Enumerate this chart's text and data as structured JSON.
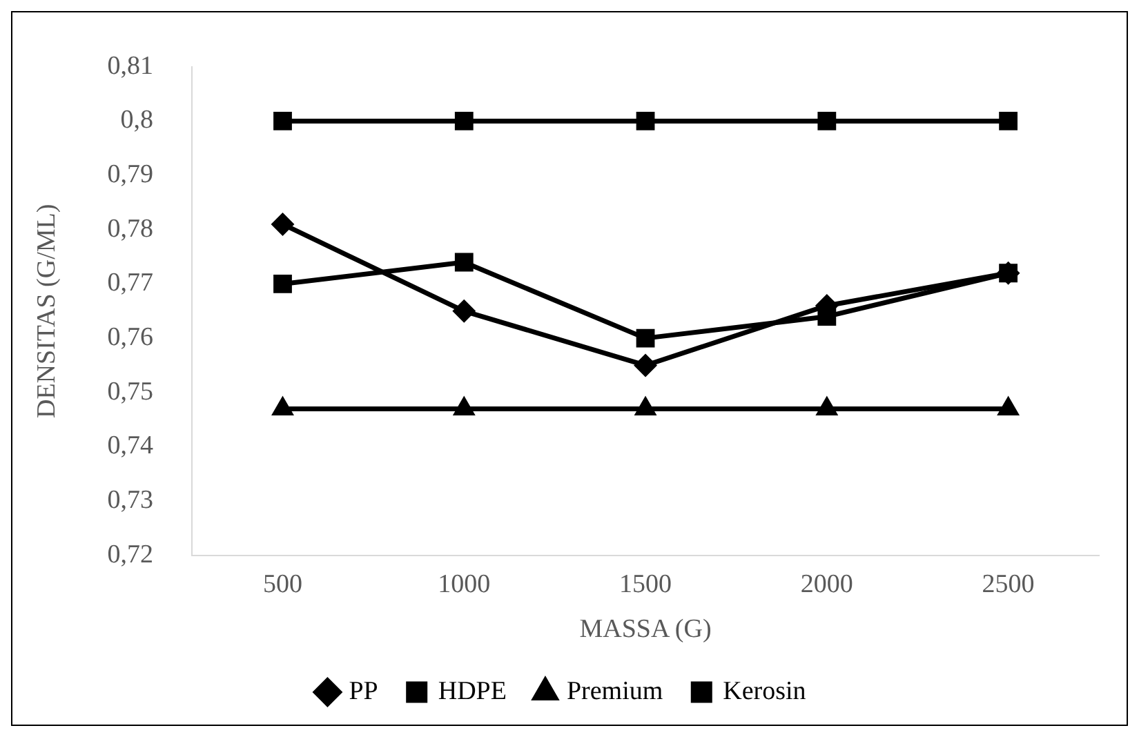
{
  "chart_data": {
    "type": "line",
    "xlabel": "MASSA (G)",
    "ylabel": "DENSITAS (G/ML)",
    "categories": [
      "500",
      "1000",
      "1500",
      "2000",
      "2500"
    ],
    "series": [
      {
        "name": "PP",
        "color": "#000000",
        "marker": "diamond",
        "values": [
          0.781,
          0.765,
          0.755,
          0.766,
          0.772
        ]
      },
      {
        "name": "HDPE",
        "color": "#000000",
        "marker": "square",
        "values": [
          0.77,
          0.774,
          0.76,
          0.764,
          0.772
        ]
      },
      {
        "name": "Premium",
        "color": "#000000",
        "marker": "triangle",
        "values": [
          0.747,
          0.747,
          0.747,
          0.747,
          0.747
        ]
      },
      {
        "name": "Kerosin",
        "color": "#000000",
        "marker": "square",
        "values": [
          0.8,
          0.8,
          0.8,
          0.8,
          0.8
        ]
      }
    ],
    "ylim": [
      0.72,
      0.81
    ],
    "yticks": [
      {
        "value": 0.72,
        "label": "0,72"
      },
      {
        "value": 0.73,
        "label": "0,73"
      },
      {
        "value": 0.74,
        "label": "0,74"
      },
      {
        "value": 0.75,
        "label": "0,75"
      },
      {
        "value": 0.76,
        "label": "0,76"
      },
      {
        "value": 0.77,
        "label": "0,77"
      },
      {
        "value": 0.78,
        "label": "0,78"
      },
      {
        "value": 0.79,
        "label": "0,79"
      },
      {
        "value": 0.8,
        "label": "0,8"
      },
      {
        "value": 0.81,
        "label": "0,81"
      }
    ],
    "grid": false,
    "legend": "bottom",
    "line_style": "solid"
  }
}
